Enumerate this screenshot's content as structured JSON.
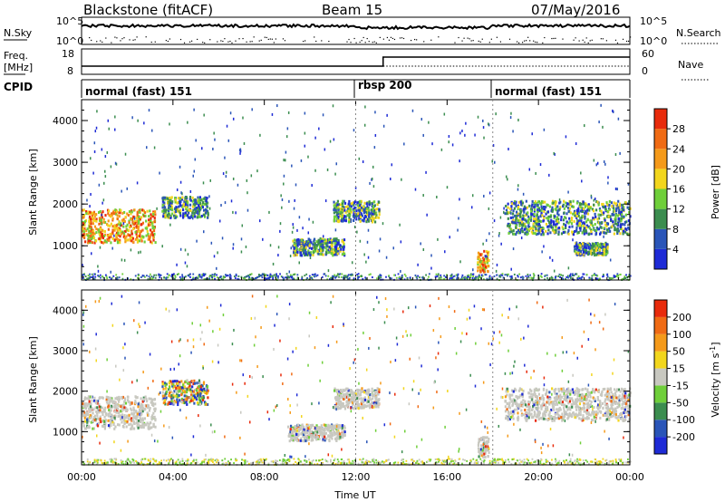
{
  "header": {
    "station": "Blackstone (fitACF)",
    "beam": "Beam 15",
    "date": "07/May/2016"
  },
  "noise_panel": {
    "left_label": "N.Sky",
    "right_label": "N.Search",
    "right_legend_style": "dotted",
    "left_ticks": [
      "10^5",
      "10^0"
    ],
    "right_ticks": [
      "10^5",
      "10^0"
    ]
  },
  "freq_panel": {
    "left_label_1": "Freq.",
    "left_label_2": "[MHz]",
    "right_label": "Nave",
    "right_legend_style": "dotted",
    "left_ticks": [
      "18",
      "8"
    ],
    "right_ticks": [
      "60",
      "0"
    ]
  },
  "cpid_panel": {
    "label": "CPID",
    "modes": [
      {
        "name": "normal (fast) 151",
        "start_hour": 0
      },
      {
        "name": "rbsp 200",
        "start_hour": 12
      },
      {
        "name": "normal (fast) 151",
        "start_hour": 18
      }
    ]
  },
  "x_axis": {
    "label": "Time UT",
    "range_hours": [
      0,
      24
    ],
    "ticks": [
      {
        "hour": 0,
        "label": "00:00"
      },
      {
        "hour": 4,
        "label": "04:00"
      },
      {
        "hour": 8,
        "label": "08:00"
      },
      {
        "hour": 12,
        "label": "12:00"
      },
      {
        "hour": 16,
        "label": "16:00"
      },
      {
        "hour": 20,
        "label": "20:00"
      },
      {
        "hour": 24,
        "label": "00:00"
      }
    ]
  },
  "chart_data": [
    {
      "type": "heatmap",
      "ylabel": "Slant Range [km]",
      "ylim": [
        180,
        4500
      ],
      "yticks": [
        1000,
        2000,
        3000,
        4000
      ],
      "colorbar": {
        "label": "Power [dB]",
        "ticks": [
          "4",
          "8",
          "12",
          "16",
          "20",
          "24",
          "28"
        ],
        "colors": [
          "#1e2bd6",
          "#2a55b8",
          "#3b8d4f",
          "#6fcf3a",
          "#f2d61d",
          "#f59a1a",
          "#f06b14",
          "#e82b0c"
        ]
      },
      "regions": [
        {
          "t": [
            0.0,
            3.2
          ],
          "r": [
            1100,
            1900
          ],
          "level": "high"
        },
        {
          "t": [
            3.5,
            5.5
          ],
          "r": [
            1700,
            2200
          ],
          "level": "medium"
        },
        {
          "t": [
            9.2,
            11.5
          ],
          "r": [
            800,
            1200
          ],
          "level": "medium"
        },
        {
          "t": [
            11.0,
            13.0
          ],
          "r": [
            1600,
            2100
          ],
          "level": "medium"
        },
        {
          "t": [
            17.3,
            17.8
          ],
          "r": [
            400,
            900
          ],
          "level": "high"
        },
        {
          "t": [
            18.5,
            24.0
          ],
          "r": [
            1300,
            2100
          ],
          "level": "medium"
        },
        {
          "t": [
            21.5,
            23.0
          ],
          "r": [
            800,
            1100
          ],
          "level": "medium"
        }
      ]
    },
    {
      "type": "heatmap",
      "ylabel": "Velocity",
      "ylabel_unit": "[m s",
      "ylabel_sup": "-1",
      "ylabel_close": "]",
      "ylim": [
        180,
        4500
      ],
      "yticks": [
        1000,
        2000,
        3000,
        4000
      ],
      "colorbar": {
        "ticks": [
          "200",
          "100",
          "50",
          "15",
          "-15",
          "-50",
          "-100",
          "-200"
        ],
        "colors": [
          "#1e2bd6",
          "#2a55b8",
          "#3b8d4f",
          "#6fcf3a",
          "#c8c8c0",
          "#f2d61d",
          "#f59a1a",
          "#f06b14",
          "#e82b0c"
        ]
      },
      "regions": [
        {
          "t": [
            0.0,
            3.2
          ],
          "r": [
            1100,
            1900
          ],
          "level": "ground"
        },
        {
          "t": [
            3.5,
            5.5
          ],
          "r": [
            1700,
            2300
          ],
          "level": "mixed"
        },
        {
          "t": [
            9.0,
            11.5
          ],
          "r": [
            800,
            1200
          ],
          "level": "ground"
        },
        {
          "t": [
            11.0,
            13.0
          ],
          "r": [
            1600,
            2100
          ],
          "level": "ground"
        },
        {
          "t": [
            17.3,
            17.8
          ],
          "r": [
            400,
            900
          ],
          "level": "ground"
        },
        {
          "t": [
            18.5,
            24.0
          ],
          "r": [
            1300,
            2100
          ],
          "level": "ground"
        }
      ]
    }
  ]
}
